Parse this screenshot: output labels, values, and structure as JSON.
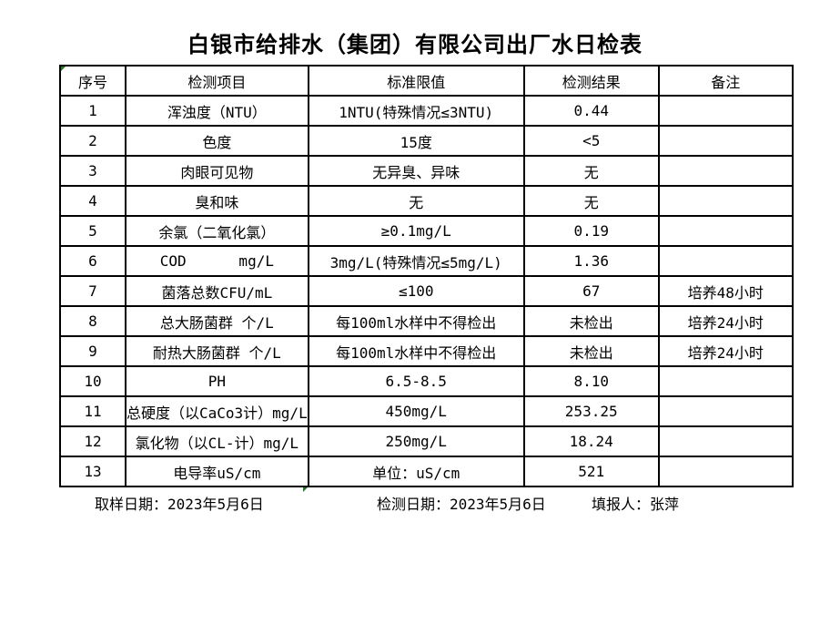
{
  "title": "白银市给排水（集团）有限公司出厂水日检表",
  "table": {
    "headers": [
      "序号",
      "检测项目",
      "标准限值",
      "检测结果",
      "备注"
    ],
    "rows": [
      {
        "no": "1",
        "item": "浑浊度（NTU）",
        "standard": "1NTU(特殊情况≤3NTU)",
        "result": "0.44",
        "note": ""
      },
      {
        "no": "2",
        "item": "色度",
        "standard": "15度",
        "result": "<5",
        "note": ""
      },
      {
        "no": "3",
        "item": "肉眼可见物",
        "standard": "无异臭、异味",
        "result": "无",
        "note": ""
      },
      {
        "no": "4",
        "item": "臭和味",
        "standard": "无",
        "result": "无",
        "note": ""
      },
      {
        "no": "5",
        "item": "余氯（二氧化氯）",
        "standard": "≥0.1mg/L",
        "result": "0.19",
        "note": ""
      },
      {
        "no": "6",
        "item": "COD      mg/L",
        "standard": "3mg/L(特殊情况≤5mg/L)",
        "result": "1.36",
        "note": ""
      },
      {
        "no": "7",
        "item": "菌落总数CFU/mL",
        "standard": "≤100",
        "result": "67",
        "note": "培养48小时"
      },
      {
        "no": "8",
        "item": "总大肠菌群 个/L",
        "standard": "每100ml水样中不得检出",
        "result": "未检出",
        "note": "培养24小时"
      },
      {
        "no": "9",
        "item": "耐热大肠菌群 个/L",
        "standard": "每100ml水样中不得检出",
        "result": "未检出",
        "note": "培养24小时"
      },
      {
        "no": "10",
        "item": "PH",
        "standard": "6.5-8.5",
        "result": "8.10",
        "note": ""
      },
      {
        "no": "11",
        "item": "总硬度（以CaCo3计）mg/L",
        "standard": "450mg/L",
        "result": "253.25",
        "note": ""
      },
      {
        "no": "12",
        "item": "氯化物（以CL-计）mg/L",
        "standard": "250mg/L",
        "result": "18.24",
        "note": ""
      },
      {
        "no": "13",
        "item": "电导率uS/cm",
        "standard": "单位：uS/cm",
        "result": "521",
        "note": ""
      }
    ]
  },
  "footer": {
    "sampling_date": "取样日期：2023年5月6日",
    "testing_date": "检测日期：2023年5月6日",
    "reporter": "填报人：张萍"
  },
  "markers": {
    "excel_error_indicator_color": "#1e7e1e"
  }
}
